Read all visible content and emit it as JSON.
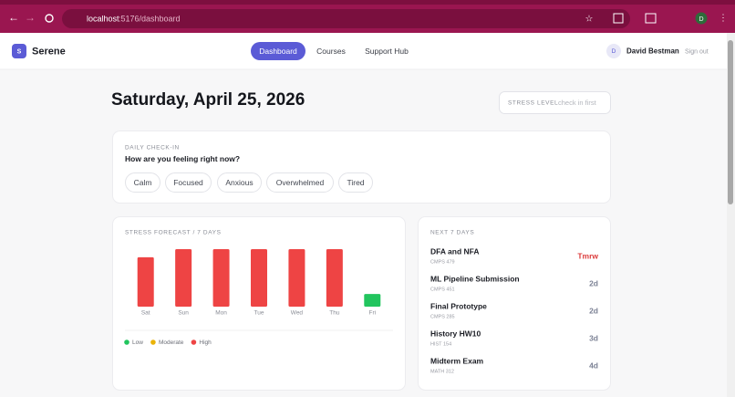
{
  "browser": {
    "url_host": "localhost",
    "url_path": ":5176/dashboard",
    "profile": "D"
  },
  "nav": {
    "logo": "S",
    "brand": "Serene",
    "links": [
      "Dashboard",
      "Courses",
      "Support Hub"
    ],
    "avatar": "D",
    "user": "David Bestman",
    "sign_out": "Sign out"
  },
  "header": {
    "date": "Saturday, April 25, 2026",
    "stress_label": "STRESS LEVEL",
    "stress_value": "check in first"
  },
  "checkin": {
    "label": "DAILY CHECK-IN",
    "question": "How are you feeling right now?",
    "options": [
      "Calm",
      "Focused",
      "Anxious",
      "Overwhelmed",
      "Tired"
    ]
  },
  "chart_data": {
    "type": "bar",
    "title": "STRESS FORECAST / 7 DAYS",
    "categories": [
      "Sat",
      "Sun",
      "Mon",
      "Tue",
      "Wed",
      "Thu",
      "Fri"
    ],
    "values": [
      86,
      100,
      100,
      100,
      100,
      100,
      22
    ],
    "colors": [
      "#ee4444",
      "#ee4444",
      "#ee4444",
      "#ee4444",
      "#ee4444",
      "#ee4444",
      "#22c55e"
    ],
    "ylim": [
      0,
      100
    ],
    "legend": [
      {
        "name": "Low",
        "color": "#22c55e"
      },
      {
        "name": "Moderate",
        "color": "#eab308"
      },
      {
        "name": "High",
        "color": "#ee4444"
      }
    ]
  },
  "upcoming": {
    "title": "NEXT 7 DAYS",
    "items": [
      {
        "name": "DFA and NFA",
        "course": "CMPS 479",
        "due": "Tmrw"
      },
      {
        "name": "ML Pipeline Submission",
        "course": "CMPS 451",
        "due": "2d"
      },
      {
        "name": "Final Prototype",
        "course": "CMPS 285",
        "due": "2d"
      },
      {
        "name": "History HW10",
        "course": "HIST 154",
        "due": "3d"
      },
      {
        "name": "Midterm Exam",
        "course": "MATH 312",
        "due": "4d"
      }
    ]
  }
}
